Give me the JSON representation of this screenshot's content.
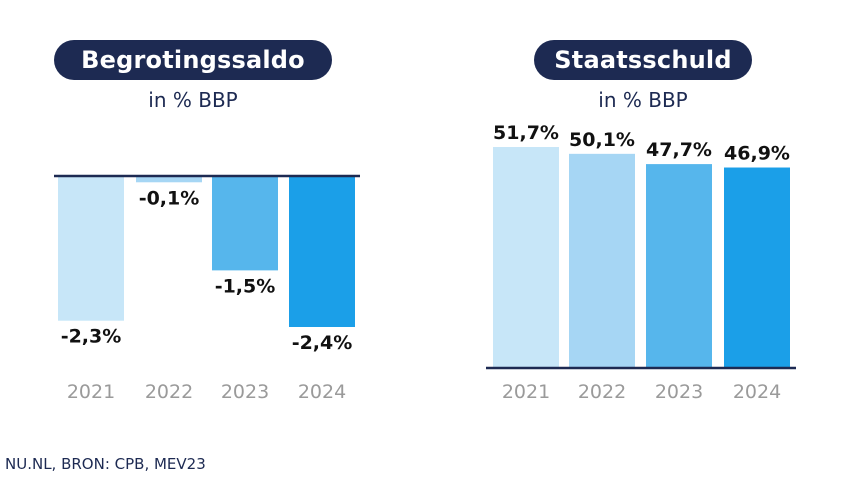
{
  "chart_data": [
    {
      "type": "bar",
      "title": "Begrotingssaldo",
      "subtitle": "in % BBP",
      "categories": [
        "2021",
        "2022",
        "2023",
        "2024"
      ],
      "values": [
        -2.3,
        -0.1,
        -1.5,
        -2.4
      ],
      "value_labels": [
        "-2,3%",
        "-0,1%",
        "-1,5%",
        "-2,4%"
      ],
      "bar_colors": [
        "#c7e6f8",
        "#a6d6f4",
        "#56b6ec",
        "#1b9fe8"
      ],
      "ylim": [
        -2.4,
        0
      ],
      "grid": false
    },
    {
      "type": "bar",
      "title": "Staatsschuld",
      "subtitle": "in % BBP",
      "categories": [
        "2021",
        "2022",
        "2023",
        "2024"
      ],
      "values": [
        51.7,
        50.1,
        47.7,
        46.9
      ],
      "value_labels": [
        "51,7%",
        "50,1%",
        "47,7%",
        "46,9%"
      ],
      "bar_colors": [
        "#c7e6f8",
        "#a6d6f4",
        "#56b6ec",
        "#1b9fe8"
      ],
      "ylim": [
        0,
        51.7
      ],
      "grid": false
    }
  ],
  "colors": {
    "navy": "#1d2a52",
    "axis_label": "#9a9a9a"
  },
  "source": "NU.NL, BRON: CPB, MEV23"
}
